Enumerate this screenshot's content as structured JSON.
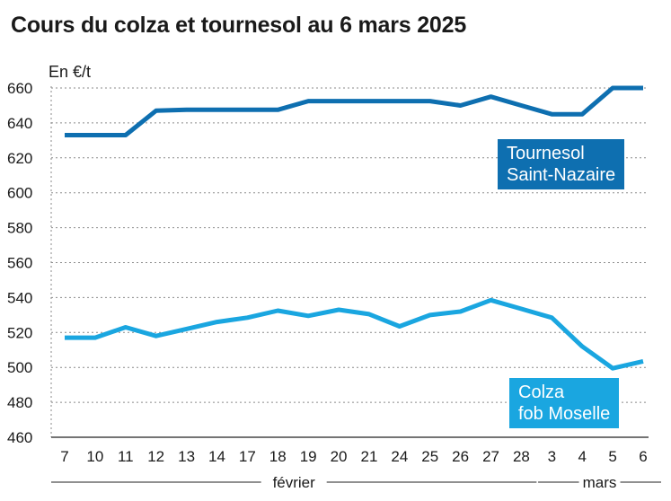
{
  "title": "Cours du colza et tournesol au 6 mars 2025",
  "colors": {
    "tournesol": "#0e6fb0",
    "colza": "#1aa6e0",
    "grid": "#8a8a8a"
  },
  "chart_data": {
    "type": "line",
    "title": "Cours du colza et tournesol au 6 mars 2025",
    "ylabel": "En €/t",
    "ylim": [
      460,
      660
    ],
    "yticks": [
      460,
      480,
      500,
      520,
      540,
      560,
      580,
      600,
      620,
      640,
      660
    ],
    "categories": [
      "7",
      "10",
      "11",
      "12",
      "13",
      "14",
      "17",
      "18",
      "19",
      "20",
      "21",
      "24",
      "25",
      "26",
      "27",
      "28",
      "3",
      "4",
      "5",
      "6"
    ],
    "months": [
      {
        "name": "février",
        "from": 0,
        "to": 15
      },
      {
        "name": "mars",
        "from": 16,
        "to": 19
      }
    ],
    "grid": true,
    "series": [
      {
        "name_lines": [
          "Tournesol",
          "Saint-Nazaire"
        ],
        "color": "#0e6fb0",
        "values": [
          633,
          633,
          633,
          647,
          647.5,
          647.5,
          647.5,
          647.5,
          652.5,
          652.5,
          652.5,
          652.5,
          652.5,
          650,
          655,
          650,
          645,
          645,
          660,
          660
        ]
      },
      {
        "name_lines": [
          "Colza",
          "fob Moselle"
        ],
        "color": "#1aa6e0",
        "values": [
          517,
          517,
          523,
          518,
          522,
          526,
          528.5,
          532.5,
          529.5,
          533,
          530.5,
          523.5,
          530,
          532,
          538.5,
          533.5,
          528.5,
          512,
          499.5,
          503.5
        ]
      }
    ]
  }
}
